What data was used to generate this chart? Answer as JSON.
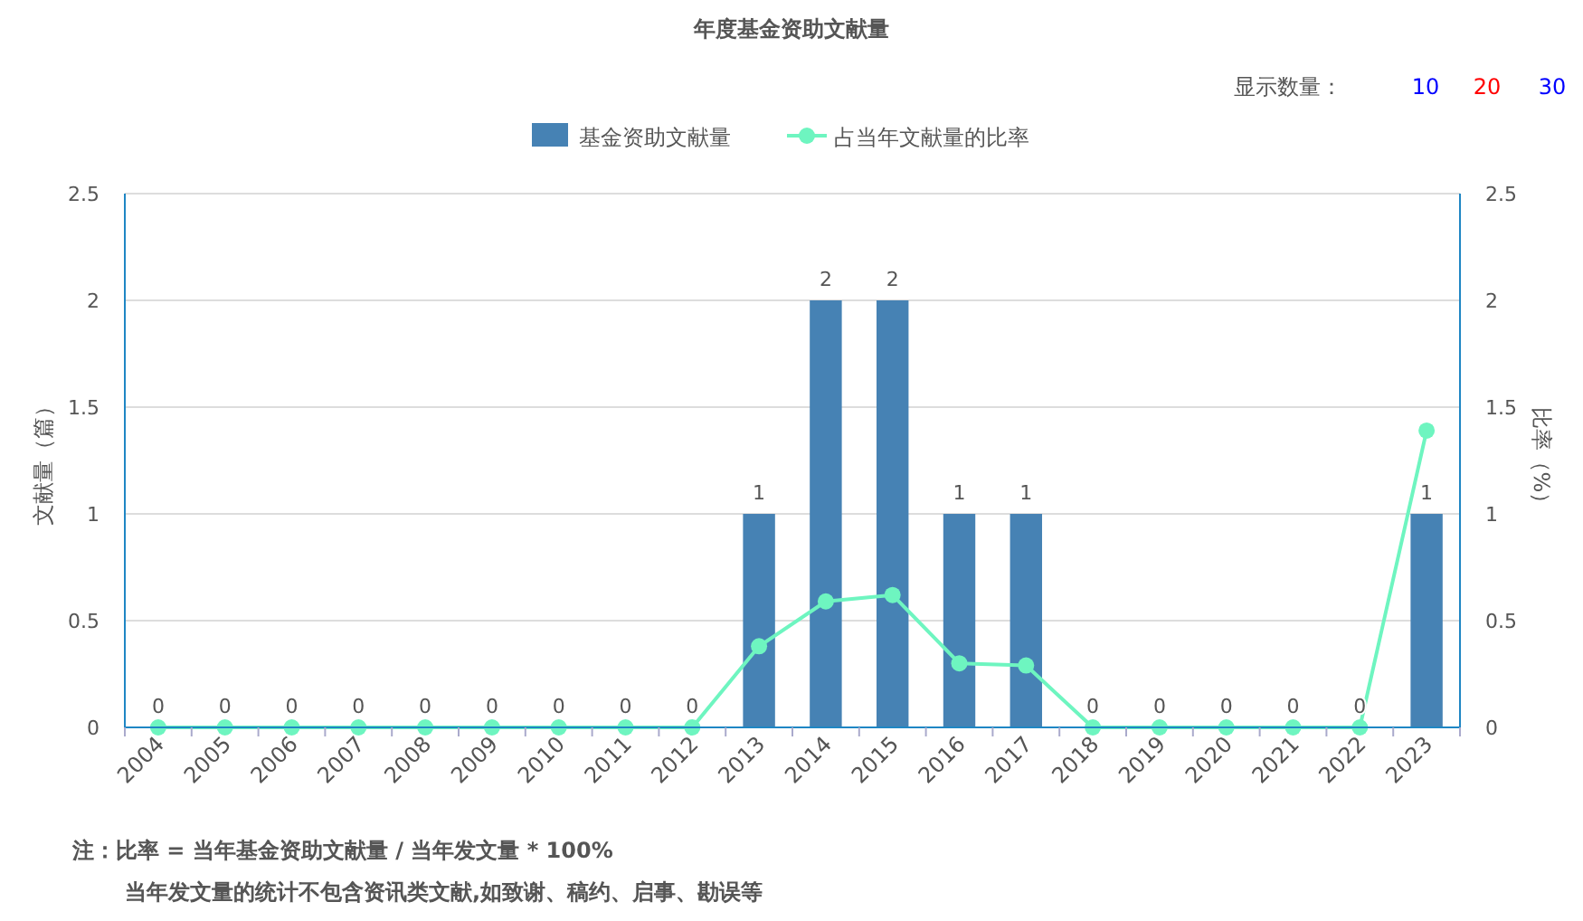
{
  "chart_data": {
    "type": "bar",
    "title": "年度基金资助文献量",
    "categories": [
      "2004",
      "2005",
      "2006",
      "2007",
      "2008",
      "2009",
      "2010",
      "2011",
      "2012",
      "2013",
      "2014",
      "2015",
      "2016",
      "2017",
      "2018",
      "2019",
      "2020",
      "2021",
      "2022",
      "2023"
    ],
    "series": [
      {
        "name": "基金资助文献量",
        "color": "#4682b4",
        "values": [
          0,
          0,
          0,
          0,
          0,
          0,
          0,
          0,
          0,
          1,
          2,
          2,
          1,
          1,
          0,
          0,
          0,
          0,
          0,
          1
        ],
        "value_labels": [
          "0",
          "0",
          "0",
          "0",
          "0",
          "0",
          "0",
          "0",
          "0",
          "1",
          "2",
          "2",
          "1",
          "1",
          "0",
          "0",
          "0",
          "0",
          "0",
          "1"
        ]
      },
      {
        "name": "占当年文献量的比率",
        "type": "line",
        "axis": "y2",
        "color": "#6ef5c0",
        "values": [
          0,
          0,
          0,
          0,
          0,
          0,
          0,
          0,
          0,
          0.38,
          0.59,
          0.62,
          0.3,
          0.29,
          0,
          0,
          0,
          0,
          0,
          1.39
        ]
      }
    ],
    "ylabel": "文献量（篇）",
    "y2label": "比率（%）",
    "ylim": [
      0,
      2.5
    ],
    "yticks": [
      0,
      0.5,
      1,
      1.5,
      2,
      2.5
    ],
    "y2lim": [
      0,
      2.5
    ],
    "y2ticks": [
      0,
      0.5,
      1,
      1.5,
      2,
      2.5
    ],
    "grid": "y",
    "legend": "top",
    "marker": "circle",
    "annotations": [
      "显示数量：",
      "10",
      "20",
      "30",
      "注：比率 = 当年基金资助文献量 / 当年发文量 * 100%",
      "当年发文量的统计不包含资讯类文献,如致谢、稿约、启事、勘误等"
    ]
  }
}
